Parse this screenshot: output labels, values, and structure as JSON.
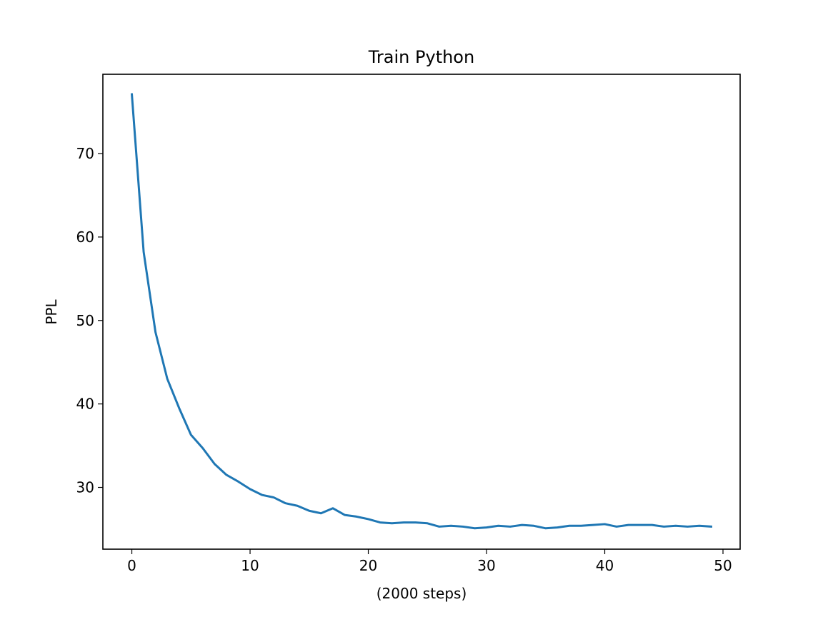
{
  "chart_data": {
    "type": "line",
    "title": "Train Python",
    "xlabel": "(2000 steps)",
    "ylabel": "PPL",
    "xlim": [
      -2.45,
      51.45
    ],
    "ylim": [
      22.6,
      79.5
    ],
    "x_ticks": [
      0,
      10,
      20,
      30,
      40,
      50
    ],
    "y_ticks": [
      30,
      40,
      50,
      60,
      70
    ],
    "grid": false,
    "legend": "none",
    "series": [
      {
        "color": "#1f77b4",
        "x": [
          0,
          1,
          2,
          3,
          4,
          5,
          6,
          7,
          8,
          9,
          10,
          11,
          12,
          13,
          14,
          15,
          16,
          17,
          18,
          19,
          20,
          21,
          22,
          23,
          24,
          25,
          26,
          27,
          28,
          29,
          30,
          31,
          32,
          33,
          34,
          35,
          36,
          37,
          38,
          39,
          40,
          41,
          42,
          43,
          44,
          45,
          46,
          47,
          48,
          49
        ],
        "y": [
          77.1,
          58.2,
          48.6,
          43.0,
          39.5,
          36.3,
          34.7,
          32.8,
          31.5,
          30.7,
          29.8,
          29.1,
          28.8,
          28.1,
          27.8,
          27.2,
          26.9,
          27.5,
          26.7,
          26.5,
          26.2,
          25.8,
          25.7,
          25.8,
          25.8,
          25.7,
          25.3,
          25.4,
          25.3,
          25.1,
          25.2,
          25.4,
          25.3,
          25.5,
          25.4,
          25.1,
          25.2,
          25.4,
          25.4,
          25.5,
          25.6,
          25.3,
          25.5,
          25.5,
          25.5,
          25.3,
          25.4,
          25.3,
          25.4,
          25.3
        ]
      }
    ]
  }
}
